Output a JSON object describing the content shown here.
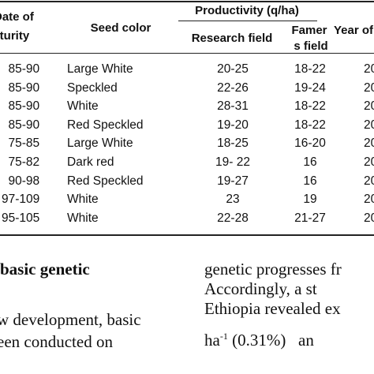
{
  "table": {
    "header": {
      "productivity": "Productivity (q/ha)",
      "maturity": [
        "Date of",
        "maturity"
      ],
      "seed_color": "Seed color",
      "research": "Research field",
      "farmer": [
        "Famer",
        "s field"
      ],
      "year": "Year of"
    },
    "rows": [
      [
        "85-90",
        "Large White",
        "20-25",
        "18-22",
        "20"
      ],
      [
        "85-90",
        "Speckled",
        "22-26",
        "19-24",
        "20"
      ],
      [
        "85-90",
        "White",
        "28-31",
        "18-22",
        "20"
      ],
      [
        "85-90",
        "Red Speckled",
        "19-20",
        "18-22",
        "20"
      ],
      [
        "75-85",
        "Large White",
        "18-25",
        "16-20",
        "20"
      ],
      [
        "75-82",
        "Dark red",
        "19- 22",
        "16",
        "20"
      ],
      [
        "90-98",
        "Red Speckled",
        "19-27",
        "16",
        "20"
      ],
      [
        "97-109",
        "White",
        "23",
        "19",
        "20"
      ],
      [
        "95-105",
        "White",
        "22-28",
        "21-27",
        "20"
      ]
    ]
  },
  "section": {
    "heading": "basic genetic",
    "left_lines": [
      "w development, basic",
      "een conducted on"
    ],
    "right_lines": [
      "genetic progresses fr",
      "Accordingly,  a  st",
      "Ethiopia revealed ex"
    ],
    "last_line": {
      "unit": "ha",
      "sup": "-1",
      "rest": " (0.31%)   an"
    }
  }
}
